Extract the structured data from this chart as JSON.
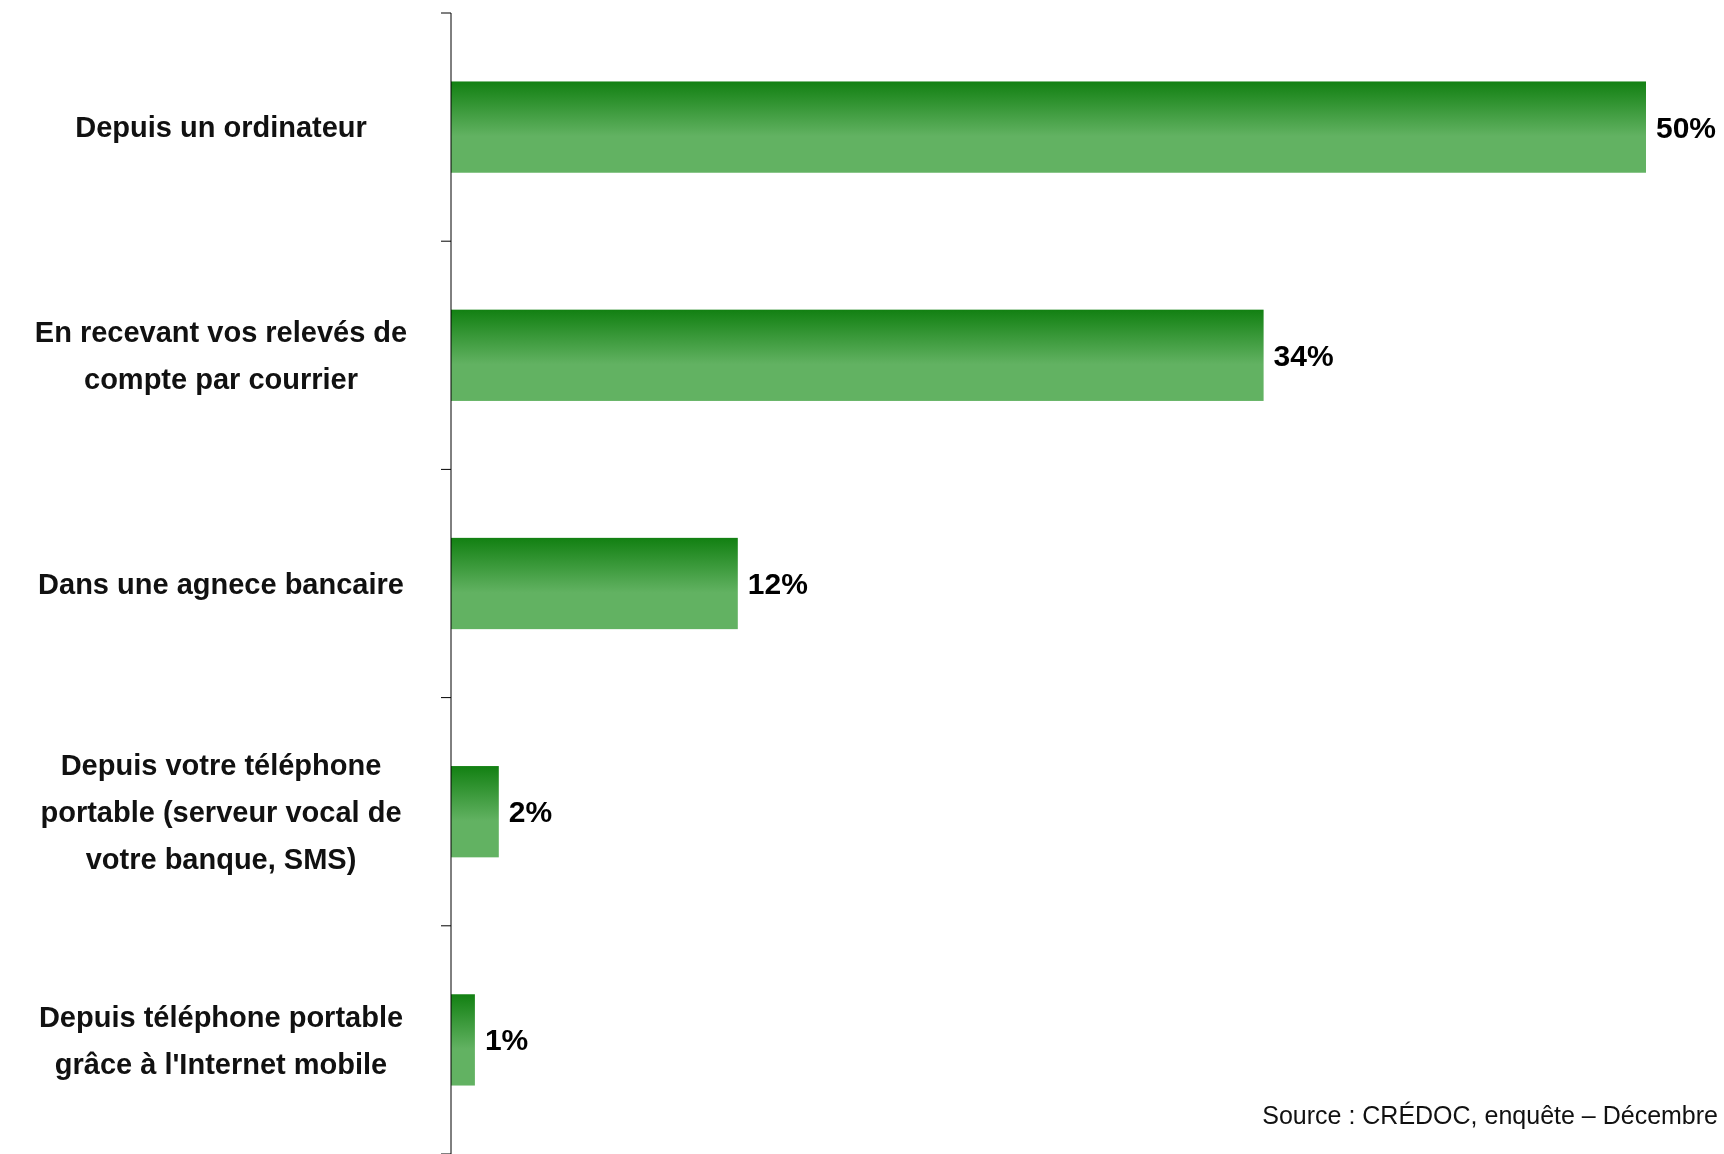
{
  "chart_data": {
    "type": "bar",
    "orientation": "horizontal",
    "categories": [
      "Depuis un ordinateur",
      "En recevant vos relevés de compte par courrier",
      "Dans une agnece bancaire",
      "Depuis votre téléphone portable (serveur vocal de votre banque, SMS)",
      "Depuis téléphone portable grâce à l'Internet mobile"
    ],
    "values": [
      50,
      34,
      12,
      2,
      1
    ],
    "value_labels": [
      "50%",
      "34%",
      "12%",
      "2%",
      "1%"
    ],
    "color": "#62b262",
    "xlim": [
      0,
      50
    ],
    "tick_labels": "y",
    "annotations": [
      "Source : CRÉDOC, enquête – Décembre"
    ]
  }
}
